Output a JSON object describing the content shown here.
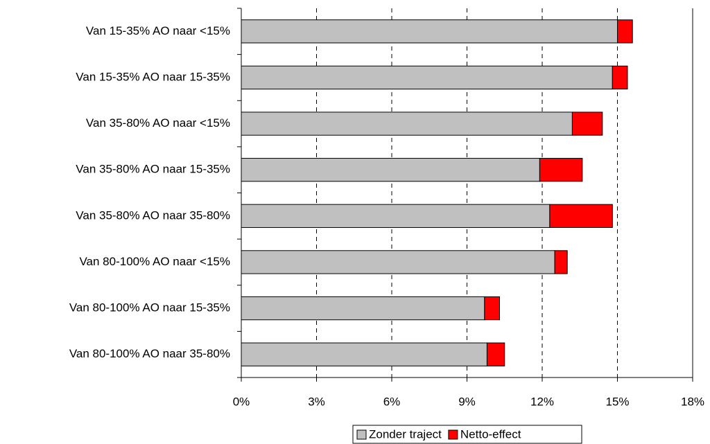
{
  "chart_data": {
    "type": "stacked-barh",
    "categories": [
      "Van 15-35% AO naar <15%",
      "Van 15-35% AO naar 15-35%",
      "Van 35-80% AO naar <15%",
      "Van 35-80% AO naar 15-35%",
      "Van 35-80% AO naar 35-80%",
      "Van 80-100% AO naar <15%",
      "Van 80-100% AO naar 15-35%",
      "Van 80-100% AO naar 35-80%"
    ],
    "series": [
      {
        "name": "Zonder traject",
        "color": "#c0c0c0",
        "values": [
          15.0,
          14.8,
          13.2,
          11.9,
          12.3,
          12.5,
          9.7,
          9.8
        ]
      },
      {
        "name": "Netto-effect",
        "color": "#ff0000",
        "values": [
          0.6,
          0.6,
          1.2,
          1.7,
          2.5,
          0.5,
          0.6,
          0.7
        ]
      }
    ],
    "xlim": [
      0,
      18
    ],
    "xticks": [
      {
        "value": 0,
        "label": "0%"
      },
      {
        "value": 3,
        "label": "3%"
      },
      {
        "value": 6,
        "label": "6%"
      },
      {
        "value": 9,
        "label": "9%"
      },
      {
        "value": 12,
        "label": "12%"
      },
      {
        "value": 15,
        "label": "15%"
      },
      {
        "value": 18,
        "label": "18%"
      }
    ],
    "grid": true,
    "legend": "bottom"
  }
}
